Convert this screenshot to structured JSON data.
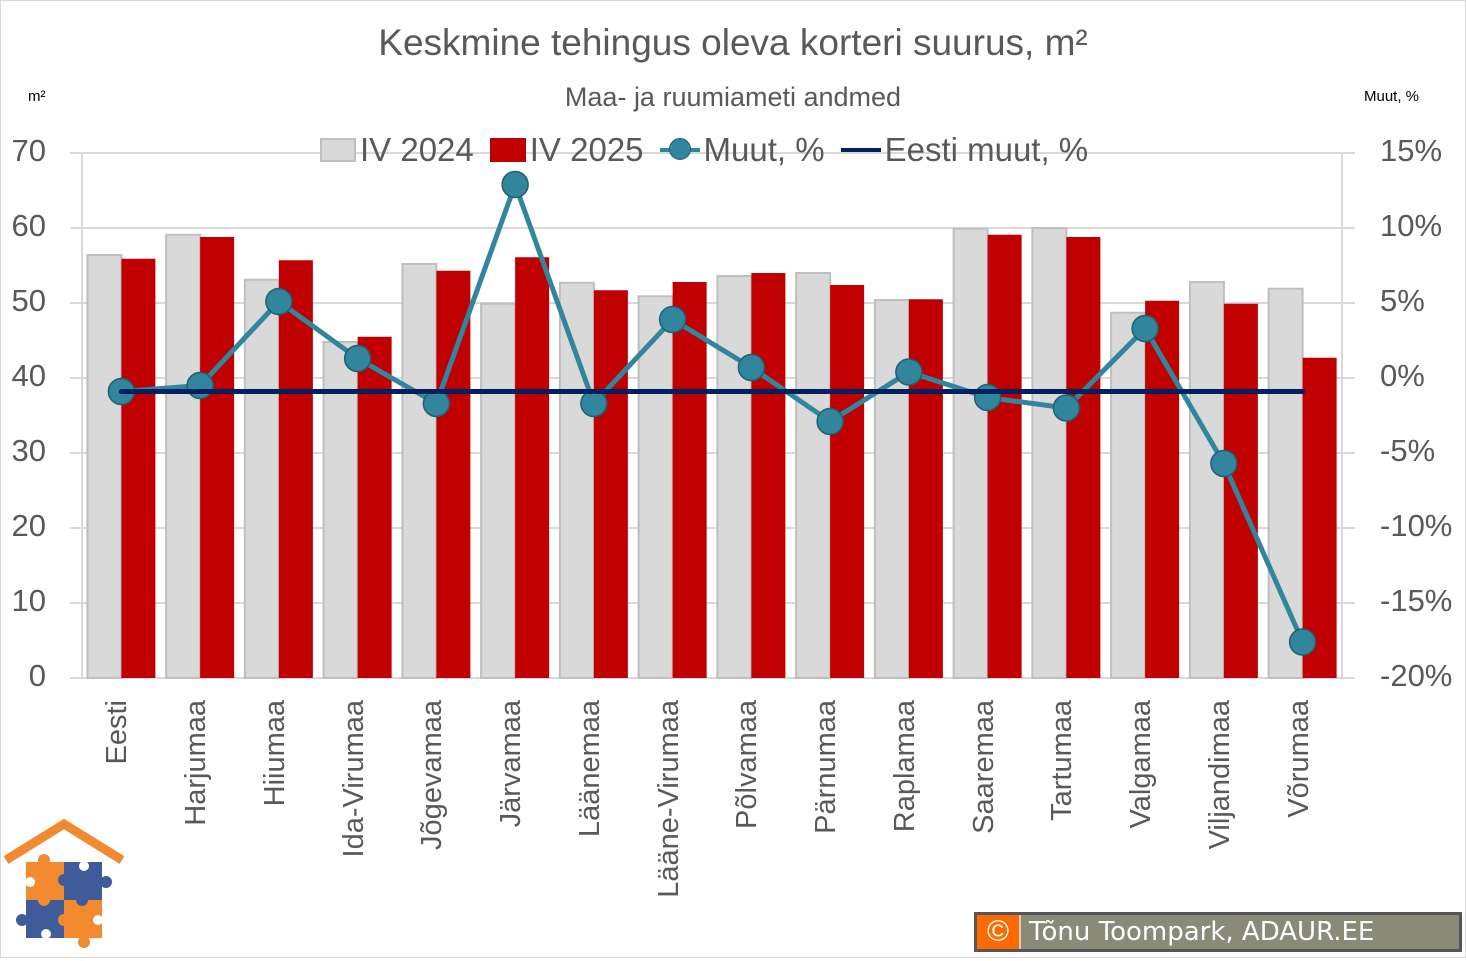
{
  "header": {
    "title": "Keskmine tehingus oleva korteri suurus, m²",
    "subtitle": "Maa- ja ruumiameti andmed",
    "left_unit": "m²",
    "right_unit": "Muut, %"
  },
  "legend": {
    "items": [
      {
        "label": "IV 2024",
        "type": "box",
        "color": "#d9d9d9"
      },
      {
        "label": "IV 2025",
        "type": "box",
        "color": "#c00000"
      },
      {
        "label": "Muut, %",
        "type": "line-marker",
        "color": "#31859c"
      },
      {
        "label": "Eesti muut, %",
        "type": "line",
        "color": "#002060"
      }
    ]
  },
  "axes": {
    "left_ticks": [
      "70",
      "60",
      "50",
      "40",
      "30",
      "20",
      "10",
      "0"
    ],
    "right_ticks": [
      "15%",
      "10%",
      "5%",
      "0%",
      "-5%",
      "-10%",
      "-15%",
      "-20%"
    ]
  },
  "footer": {
    "copyright_symbol": "©",
    "copyright_text": "Tõnu Toompark, ADAUR.EE",
    "logo_icon": "house-puzzle-logo-icon"
  },
  "colors": {
    "iv2024": "#d9d9d9",
    "iv2024_border": "#bfbfbf",
    "iv2025": "#c00000",
    "muut": "#31859c",
    "eesti_muut": "#002060",
    "grid": "#d9d9d9",
    "text": "#595959"
  },
  "chart_data": {
    "type": "bar",
    "title": "Keskmine tehingus oleva korteri suurus, m²",
    "subtitle": "Maa- ja ruumiameti andmed",
    "xlabel": "",
    "ylabel": "m²",
    "y2label": "Muut, %",
    "ylim": [
      0,
      70
    ],
    "y2lim": [
      -20,
      15
    ],
    "grid": true,
    "legend_position": "top",
    "categories": [
      "Eesti",
      "Harjumaa",
      "Hiiumaa",
      "Ida-Virumaa",
      "Jõgevamaa",
      "Järvamaa",
      "Läänemaa",
      "Lääne-Virumaa",
      "Põlvamaa",
      "Pärnumaa",
      "Raplamaa",
      "Saaremaa",
      "Tartumaa",
      "Valgamaa",
      "Viljandimaa",
      "Võrumaa"
    ],
    "series": [
      {
        "name": "IV 2024",
        "type": "bar",
        "axis": "left",
        "values": [
          56.4,
          59.1,
          53.1,
          44.8,
          55.2,
          49.9,
          52.7,
          50.9,
          53.6,
          54.0,
          50.4,
          59.9,
          60.0,
          48.7,
          52.8,
          51.9
        ]
      },
      {
        "name": "IV 2025",
        "type": "bar",
        "axis": "left",
        "values": [
          55.9,
          58.8,
          55.7,
          45.5,
          54.3,
          56.1,
          51.7,
          52.8,
          54.0,
          52.4,
          50.5,
          59.1,
          58.8,
          50.3,
          49.9,
          42.7
        ]
      },
      {
        "name": "Muut, %",
        "type": "line",
        "axis": "right",
        "values": [
          -0.9,
          -0.5,
          5.1,
          1.3,
          -1.7,
          12.9,
          -1.7,
          3.9,
          0.7,
          -2.9,
          0.4,
          -1.3,
          -2.0,
          3.3,
          -5.7,
          -17.6
        ]
      },
      {
        "name": "Eesti muut, %",
        "type": "line",
        "axis": "right",
        "values": [
          -0.9,
          -0.9,
          -0.9,
          -0.9,
          -0.9,
          -0.9,
          -0.9,
          -0.9,
          -0.9,
          -0.9,
          -0.9,
          -0.9,
          -0.9,
          -0.9,
          -0.9,
          -0.9
        ]
      }
    ]
  }
}
